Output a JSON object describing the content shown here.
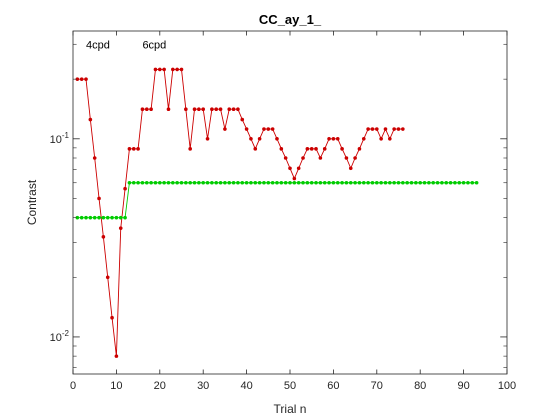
{
  "chart_data": {
    "type": "line",
    "title": "CC_ay_1_",
    "xlabel": "Trial n",
    "ylabel": "Contrast",
    "xlim": [
      0,
      100
    ],
    "ylim": [
      0.0065,
      0.35
    ],
    "yscale": "log",
    "grid": false,
    "x_ticks": [
      "0",
      "10",
      "20",
      "30",
      "40",
      "50",
      "60",
      "70",
      "80",
      "90",
      "100"
    ],
    "y_ticks": [
      {
        "value": 0.01,
        "base": "10",
        "exp": "-2"
      },
      {
        "value": 0.1,
        "base": "10",
        "exp": "-1"
      }
    ],
    "annotations": [
      {
        "text": "4cpd",
        "x": 3,
        "y": 0.3
      },
      {
        "text": "6cpd",
        "x": 16,
        "y": 0.3
      }
    ],
    "series": [
      {
        "color": "#cc0000",
        "x": [
          1,
          2,
          3,
          4,
          5,
          6,
          7,
          8,
          9,
          10,
          11,
          12,
          13,
          14,
          15,
          16,
          17,
          18,
          19,
          20,
          21,
          22,
          23,
          24,
          25,
          26,
          27,
          28,
          29,
          30,
          31,
          32,
          33,
          34,
          35,
          36,
          37,
          38,
          39,
          40,
          41,
          42,
          43,
          44,
          45,
          46,
          47,
          48,
          49,
          50,
          51,
          52,
          53,
          54,
          55,
          56,
          57,
          58,
          59,
          60,
          61,
          62,
          63,
          64,
          65,
          66,
          67,
          68,
          69,
          70,
          71,
          72,
          73,
          74,
          75,
          76
        ],
        "y": [
          0.2,
          0.2,
          0.2,
          0.125,
          0.08,
          0.05,
          0.032,
          0.02,
          0.0125,
          0.008,
          0.0354,
          0.056,
          0.089,
          0.089,
          0.089,
          0.141,
          0.141,
          0.141,
          0.224,
          0.224,
          0.224,
          0.141,
          0.224,
          0.224,
          0.224,
          0.141,
          0.089,
          0.141,
          0.141,
          0.141,
          0.1,
          0.141,
          0.141,
          0.141,
          0.112,
          0.141,
          0.141,
          0.141,
          0.125,
          0.112,
          0.1,
          0.089,
          0.1,
          0.112,
          0.112,
          0.112,
          0.1,
          0.089,
          0.08,
          0.071,
          0.063,
          0.071,
          0.08,
          0.089,
          0.089,
          0.089,
          0.08,
          0.089,
          0.1,
          0.1,
          0.1,
          0.089,
          0.08,
          0.071,
          0.08,
          0.089,
          0.1,
          0.112,
          0.112,
          0.112,
          0.1,
          0.112,
          0.1,
          0.112,
          0.112,
          0.112
        ]
      },
      {
        "color": "#00cc00",
        "x": [
          1,
          2,
          3,
          4,
          5,
          6,
          7,
          8,
          9,
          10,
          11,
          12,
          13,
          14,
          15,
          16,
          17,
          18,
          19,
          20,
          21,
          22,
          23,
          24,
          25,
          26,
          27,
          28,
          29,
          30,
          31,
          32,
          33,
          34,
          35,
          36,
          37,
          38,
          39,
          40,
          41,
          42,
          43,
          44,
          45,
          46,
          47,
          48,
          49,
          50,
          51,
          52,
          53,
          54,
          55,
          56,
          57,
          58,
          59,
          60,
          61,
          62,
          63,
          64,
          65,
          66,
          67,
          68,
          69,
          70,
          71,
          72,
          73,
          74,
          75,
          76,
          77,
          78,
          79,
          80,
          81,
          82,
          83,
          84,
          85,
          86,
          87,
          88,
          89,
          90,
          91,
          92,
          93
        ],
        "y": [
          0.04,
          0.04,
          0.04,
          0.04,
          0.04,
          0.04,
          0.04,
          0.04,
          0.04,
          0.04,
          0.04,
          0.04,
          0.06,
          0.06,
          0.06,
          0.06,
          0.06,
          0.06,
          0.06,
          0.06,
          0.06,
          0.06,
          0.06,
          0.06,
          0.06,
          0.06,
          0.06,
          0.06,
          0.06,
          0.06,
          0.06,
          0.06,
          0.06,
          0.06,
          0.06,
          0.06,
          0.06,
          0.06,
          0.06,
          0.06,
          0.06,
          0.06,
          0.06,
          0.06,
          0.06,
          0.06,
          0.06,
          0.06,
          0.06,
          0.06,
          0.06,
          0.06,
          0.06,
          0.06,
          0.06,
          0.06,
          0.06,
          0.06,
          0.06,
          0.06,
          0.06,
          0.06,
          0.06,
          0.06,
          0.06,
          0.06,
          0.06,
          0.06,
          0.06,
          0.06,
          0.06,
          0.06,
          0.06,
          0.06,
          0.06,
          0.06,
          0.06,
          0.06,
          0.06,
          0.06,
          0.06,
          0.06,
          0.06,
          0.06,
          0.06,
          0.06,
          0.06,
          0.06,
          0.06,
          0.06,
          0.06,
          0.06,
          0.06
        ]
      }
    ]
  }
}
